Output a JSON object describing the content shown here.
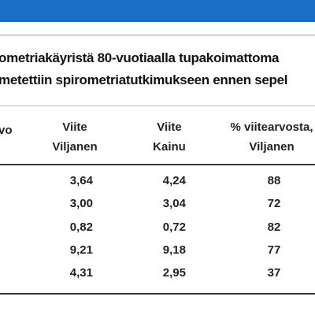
{
  "caption": [
    "ometriakäyristä 80-vuotiaalla tupakoimattoma",
    "metettiin spirometriatutkimukseen ennen sepel"
  ],
  "table": {
    "header": [
      [
        "vo"
      ],
      [
        "Viite",
        "Viljanen"
      ],
      [
        "Viite",
        "Kainu"
      ],
      [
        "% viitearvosta,",
        "Viljanen"
      ]
    ],
    "rows": [
      [
        "3,64",
        "4,24",
        "88"
      ],
      [
        "3,00",
        "3,04",
        "72"
      ],
      [
        "0,82",
        "0,72",
        "82"
      ],
      [
        "9,21",
        "9,18",
        "77"
      ],
      [
        "4,31",
        "2,95",
        "37"
      ]
    ]
  }
}
